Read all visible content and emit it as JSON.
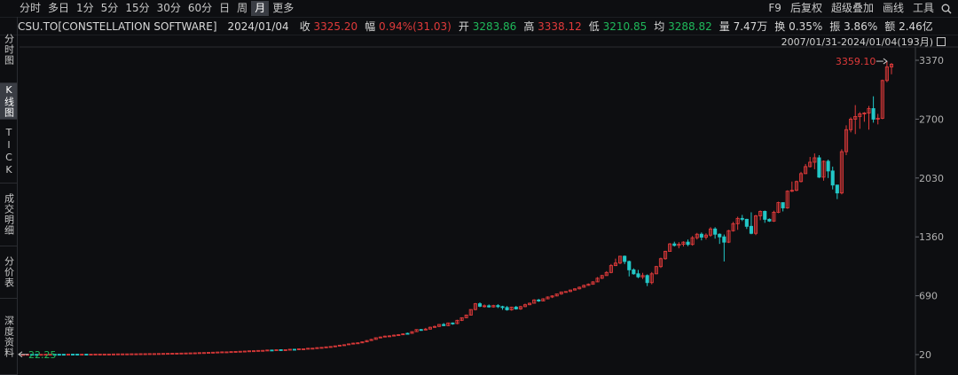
{
  "toolbar": {
    "periods": [
      "分时",
      "多日",
      "1分",
      "5分",
      "15分",
      "30分",
      "60分",
      "日",
      "周",
      "月",
      "更多"
    ],
    "active_period": "月",
    "right_items": [
      "F9",
      "后复权",
      "超级叠加",
      "画线",
      "工具"
    ],
    "search_icon": "search-icon"
  },
  "quote": {
    "name": "CSU.TO[CONSTELLATION SOFTWARE]",
    "date": "2024/01/04",
    "close_label": "收",
    "close": "3325.20",
    "change_label": "幅",
    "change": "0.94%(31.03)",
    "open_label": "开",
    "open": "3283.86",
    "high_label": "高",
    "high": "3338.12",
    "low_label": "低",
    "low": "3210.85",
    "avg_label": "均",
    "avg": "3288.82",
    "volume_label": "量",
    "volume": "7.47万",
    "turnover_label": "换",
    "turnover": "0.35%",
    "amplitude_label": "振",
    "amplitude": "3.86%",
    "amount_label": "额",
    "amount": "2.46亿"
  },
  "sidebar": {
    "tabs": [
      "分时图",
      "K线图",
      "TICK",
      "成交明细",
      "分价表",
      "深度资料"
    ],
    "active": "K线图"
  },
  "colors": {
    "up": "#e03a3a",
    "down": "#22c7c7",
    "bg": "#0d0e11",
    "grid": "#2a2c31"
  },
  "chart_data": {
    "type": "candlestick",
    "range_label": "2007/01/31-2024/01/04(193月)",
    "y_ticks": [
      20,
      690,
      1360,
      2030,
      2700,
      3370
    ],
    "ylim": [
      20,
      3370
    ],
    "max_label": "3359.10",
    "min_label": "22.25",
    "x_count": 193,
    "candles": [
      [
        22,
        22,
        23,
        22,
        1
      ],
      [
        22,
        23,
        24,
        22,
        1
      ],
      [
        23,
        23,
        24,
        22,
        0
      ],
      [
        23,
        23,
        23,
        22,
        0
      ],
      [
        23,
        23,
        23,
        22,
        1
      ],
      [
        23,
        24,
        24,
        23,
        1
      ],
      [
        24,
        24,
        24,
        23,
        1
      ],
      [
        24,
        24,
        25,
        23,
        0
      ],
      [
        24,
        24,
        24,
        24,
        0
      ],
      [
        24,
        24,
        25,
        24,
        0
      ],
      [
        24,
        25,
        25,
        24,
        1
      ],
      [
        25,
        24,
        25,
        24,
        0
      ],
      [
        24,
        25,
        25,
        24,
        0
      ],
      [
        25,
        25,
        25,
        24,
        1
      ],
      [
        25,
        25,
        25,
        24,
        0
      ],
      [
        25,
        25,
        25,
        24,
        1
      ],
      [
        25,
        26,
        26,
        25,
        1
      ],
      [
        26,
        26,
        26,
        25,
        1
      ],
      [
        26,
        26,
        27,
        25,
        1
      ],
      [
        26,
        26,
        27,
        26,
        1
      ],
      [
        26,
        27,
        27,
        26,
        1
      ],
      [
        27,
        28,
        28,
        27,
        1
      ],
      [
        28,
        28,
        29,
        27,
        1
      ],
      [
        28,
        28,
        28,
        28,
        1
      ],
      [
        28,
        29,
        29,
        28,
        1
      ],
      [
        29,
        29,
        29,
        29,
        1
      ],
      [
        29,
        30,
        30,
        29,
        1
      ],
      [
        30,
        30,
        31,
        29,
        1
      ],
      [
        30,
        31,
        32,
        30,
        1
      ],
      [
        31,
        31,
        32,
        30,
        1
      ],
      [
        31,
        32,
        32,
        31,
        1
      ],
      [
        32,
        33,
        33,
        31,
        1
      ],
      [
        33,
        34,
        35,
        33,
        1
      ],
      [
        34,
        35,
        36,
        34,
        1
      ],
      [
        35,
        36,
        36,
        34,
        1
      ],
      [
        36,
        37,
        38,
        35,
        1
      ],
      [
        37,
        38,
        38,
        37,
        1
      ],
      [
        38,
        39,
        40,
        37,
        1
      ],
      [
        39,
        40,
        41,
        38,
        1
      ],
      [
        40,
        42,
        43,
        39,
        1
      ],
      [
        42,
        43,
        45,
        42,
        1
      ],
      [
        43,
        45,
        47,
        43,
        1
      ],
      [
        45,
        47,
        48,
        44,
        1
      ],
      [
        47,
        49,
        50,
        46,
        1
      ],
      [
        49,
        51,
        52,
        48,
        1
      ],
      [
        51,
        51,
        54,
        50,
        1
      ],
      [
        51,
        54,
        55,
        51,
        1
      ],
      [
        54,
        56,
        57,
        53,
        1
      ],
      [
        56,
        58,
        59,
        55,
        1
      ],
      [
        58,
        60,
        60,
        58,
        1
      ],
      [
        60,
        63,
        64,
        58,
        1
      ],
      [
        63,
        64,
        66,
        63,
        1
      ],
      [
        64,
        67,
        69,
        64,
        1
      ],
      [
        67,
        68,
        71,
        66,
        1
      ],
      [
        68,
        72,
        73,
        66,
        1
      ],
      [
        72,
        72,
        73,
        70,
        0
      ],
      [
        72,
        75,
        75,
        70,
        1
      ],
      [
        75,
        76,
        78,
        74,
        0
      ],
      [
        76,
        76,
        80,
        75,
        1
      ],
      [
        76,
        81,
        82,
        75,
        1
      ],
      [
        81,
        80,
        83,
        79,
        0
      ],
      [
        80,
        86,
        87,
        80,
        1
      ],
      [
        86,
        86,
        88,
        85,
        1
      ],
      [
        86,
        92,
        93,
        84,
        1
      ],
      [
        92,
        93,
        95,
        91,
        1
      ],
      [
        93,
        99,
        102,
        93,
        1
      ],
      [
        99,
        102,
        105,
        98,
        1
      ],
      [
        102,
        108,
        110,
        101,
        1
      ],
      [
        108,
        112,
        115,
        108,
        1
      ],
      [
        112,
        119,
        121,
        111,
        1
      ],
      [
        119,
        127,
        130,
        118,
        1
      ],
      [
        127,
        132,
        137,
        125,
        1
      ],
      [
        132,
        142,
        144,
        132,
        1
      ],
      [
        142,
        150,
        156,
        141,
        1
      ],
      [
        150,
        154,
        159,
        150,
        1
      ],
      [
        154,
        165,
        168,
        154,
        1
      ],
      [
        165,
        180,
        184,
        164,
        1
      ],
      [
        180,
        193,
        199,
        179,
        1
      ],
      [
        193,
        212,
        214,
        191,
        1
      ],
      [
        212,
        220,
        226,
        211,
        1
      ],
      [
        220,
        230,
        236,
        219,
        1
      ],
      [
        230,
        233,
        240,
        227,
        1
      ],
      [
        233,
        241,
        248,
        231,
        1
      ],
      [
        241,
        247,
        253,
        238,
        1
      ],
      [
        247,
        256,
        262,
        246,
        1
      ],
      [
        256,
        262,
        270,
        254,
        0
      ],
      [
        262,
        281,
        284,
        262,
        1
      ],
      [
        281,
        305,
        308,
        279,
        1
      ],
      [
        305,
        300,
        312,
        292,
        0
      ],
      [
        300,
        310,
        324,
        296,
        1
      ],
      [
        310,
        331,
        339,
        307,
        1
      ],
      [
        331,
        340,
        350,
        325,
        1
      ],
      [
        340,
        363,
        365,
        335,
        1
      ],
      [
        363,
        350,
        379,
        344,
        0
      ],
      [
        350,
        380,
        384,
        344,
        1
      ],
      [
        380,
        374,
        386,
        360,
        0
      ],
      [
        374,
        410,
        416,
        365,
        1
      ],
      [
        410,
        440,
        442,
        402,
        1
      ],
      [
        440,
        470,
        476,
        434,
        1
      ],
      [
        470,
        533,
        536,
        465,
        1
      ],
      [
        533,
        599,
        608,
        523,
        1
      ],
      [
        599,
        570,
        615,
        560,
        0
      ],
      [
        570,
        576,
        591,
        555,
        1
      ],
      [
        576,
        563,
        591,
        554,
        0
      ],
      [
        563,
        578,
        587,
        554,
        1
      ],
      [
        578,
        566,
        594,
        550,
        0
      ],
      [
        566,
        556,
        576,
        530,
        0
      ],
      [
        556,
        530,
        573,
        520,
        0
      ],
      [
        530,
        560,
        566,
        520,
        1
      ],
      [
        560,
        540,
        575,
        532,
        0
      ],
      [
        540,
        566,
        575,
        530,
        1
      ],
      [
        566,
        588,
        600,
        560,
        1
      ],
      [
        588,
        605,
        612,
        583,
        1
      ],
      [
        605,
        642,
        650,
        602,
        1
      ],
      [
        642,
        630,
        654,
        620,
        0
      ],
      [
        630,
        655,
        662,
        626,
        1
      ],
      [
        655,
        676,
        683,
        650,
        1
      ],
      [
        676,
        688,
        695,
        664,
        1
      ],
      [
        688,
        710,
        712,
        684,
        1
      ],
      [
        710,
        733,
        736,
        702,
        1
      ],
      [
        733,
        738,
        741,
        728,
        1
      ],
      [
        738,
        755,
        760,
        732,
        1
      ],
      [
        755,
        769,
        774,
        750,
        1
      ],
      [
        769,
        787,
        795,
        762,
        1
      ],
      [
        787,
        808,
        816,
        784,
        1
      ],
      [
        808,
        821,
        830,
        804,
        1
      ],
      [
        821,
        848,
        856,
        816,
        1
      ],
      [
        848,
        889,
        903,
        845,
        1
      ],
      [
        889,
        920,
        928,
        880,
        1
      ],
      [
        920,
        955,
        970,
        917,
        1
      ],
      [
        955,
        1033,
        1051,
        946,
        1
      ],
      [
        1033,
        1062,
        1113,
        1028,
        1
      ],
      [
        1062,
        1140,
        1144,
        1050,
        1
      ],
      [
        1140,
        1080,
        1148,
        1050,
        0
      ],
      [
        1080,
        985,
        1090,
        910,
        0
      ],
      [
        985,
        940,
        1002,
        930,
        0
      ],
      [
        940,
        905,
        984,
        890,
        0
      ],
      [
        905,
        920,
        951,
        880,
        1
      ],
      [
        920,
        840,
        933,
        800,
        0
      ],
      [
        840,
        940,
        960,
        820,
        1
      ],
      [
        940,
        1022,
        1030,
        935,
        1
      ],
      [
        1022,
        1112,
        1124,
        1006,
        1
      ],
      [
        1112,
        1195,
        1202,
        1100,
        1
      ],
      [
        1195,
        1280,
        1290,
        1190,
        1
      ],
      [
        1280,
        1263,
        1305,
        1250,
        0
      ],
      [
        1263,
        1276,
        1300,
        1230,
        1
      ],
      [
        1276,
        1300,
        1310,
        1250,
        1
      ],
      [
        1300,
        1274,
        1330,
        1254,
        0
      ],
      [
        1274,
        1350,
        1370,
        1260,
        1
      ],
      [
        1350,
        1390,
        1405,
        1330,
        1
      ],
      [
        1390,
        1357,
        1410,
        1320,
        0
      ],
      [
        1357,
        1380,
        1400,
        1330,
        1
      ],
      [
        1380,
        1450,
        1470,
        1361,
        1
      ],
      [
        1450,
        1390,
        1470,
        1340,
        0
      ],
      [
        1390,
        1360,
        1400,
        1280,
        0
      ],
      [
        1360,
        1300,
        1387,
        1080,
        0
      ],
      [
        1300,
        1430,
        1440,
        1290,
        1
      ],
      [
        1430,
        1510,
        1530,
        1420,
        1
      ],
      [
        1510,
        1570,
        1590,
        1440,
        1
      ],
      [
        1570,
        1560,
        1610,
        1540,
        0
      ],
      [
        1560,
        1480,
        1566,
        1450,
        0
      ],
      [
        1480,
        1400,
        1640,
        1390,
        0
      ],
      [
        1400,
        1600,
        1610,
        1380,
        1
      ],
      [
        1600,
        1650,
        1661,
        1550,
        1
      ],
      [
        1650,
        1560,
        1660,
        1520,
        0
      ],
      [
        1560,
        1540,
        1571,
        1530,
        0
      ],
      [
        1540,
        1640,
        1658,
        1530,
        1
      ],
      [
        1640,
        1750,
        1760,
        1630,
        1
      ],
      [
        1750,
        1690,
        1750,
        1650,
        0
      ],
      [
        1690,
        1880,
        1890,
        1680,
        1
      ],
      [
        1880,
        1890,
        1990,
        1870,
        1
      ],
      [
        1890,
        1990,
        2000,
        1880,
        1
      ],
      [
        1990,
        2080,
        2100,
        1980,
        1
      ],
      [
        2080,
        2160,
        2190,
        2075,
        1
      ],
      [
        2160,
        2210,
        2270,
        2150,
        1
      ],
      [
        2210,
        2260,
        2310,
        2130,
        1
      ],
      [
        2260,
        2040,
        2290,
        2030,
        0
      ],
      [
        2040,
        2220,
        2230,
        2000,
        1
      ],
      [
        2220,
        2110,
        2240,
        2030,
        0
      ],
      [
        2110,
        1950,
        2160,
        1900,
        0
      ],
      [
        1950,
        1860,
        1950,
        1790,
        0
      ],
      [
        1860,
        2330,
        2357,
        1844,
        1
      ],
      [
        2330,
        2580,
        2630,
        2290,
        1
      ],
      [
        2580,
        2700,
        2720,
        2550,
        1
      ],
      [
        2700,
        2730,
        2860,
        2530,
        1
      ],
      [
        2730,
        2760,
        2780,
        2590,
        1
      ],
      [
        2760,
        2770,
        2780,
        2670,
        1
      ],
      [
        2770,
        2820,
        2850,
        2580,
        1
      ],
      [
        2820,
        2700,
        2960,
        2660,
        0
      ],
      [
        2700,
        2710,
        2760,
        2640,
        1
      ],
      [
        2710,
        3140,
        3150,
        2700,
        1
      ],
      [
        3140,
        3294,
        3359,
        3120,
        1
      ],
      [
        3294,
        3325,
        3338,
        3211,
        1
      ]
    ]
  }
}
